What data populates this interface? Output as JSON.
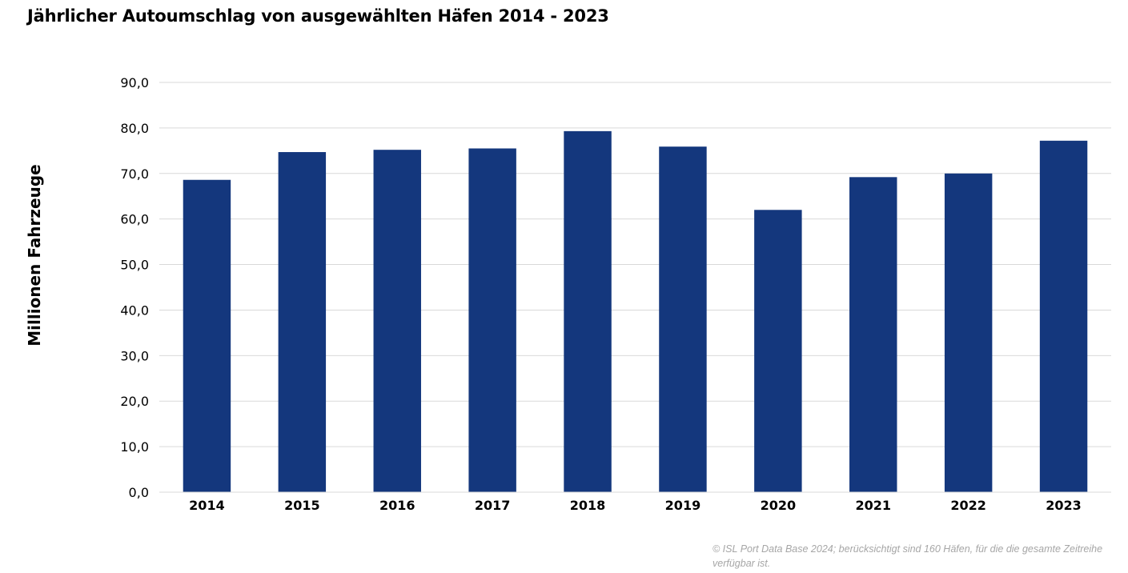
{
  "chart_data": {
    "type": "bar",
    "title": "Jährlicher Autoumschlag von ausgewählten Häfen 2014 - 2023",
    "xlabel": "",
    "ylabel": "Millionen Fahrzeuge",
    "categories": [
      "2014",
      "2015",
      "2016",
      "2017",
      "2018",
      "2019",
      "2020",
      "2021",
      "2022",
      "2023"
    ],
    "values": [
      68.6,
      74.7,
      75.2,
      75.5,
      79.3,
      75.9,
      62.0,
      69.2,
      70.0,
      77.2
    ],
    "ylim": [
      0,
      90
    ],
    "yticks": [
      "0,0",
      "10,0",
      "20,0",
      "30,0",
      "40,0",
      "50,0",
      "60,0",
      "70,0",
      "80,0",
      "90,0"
    ],
    "grid": true,
    "legend": "none",
    "colors": {
      "bar": "#14377d",
      "grid": "#d9d9d9",
      "axis": "#d9d9d9",
      "source": "#a6a6a6"
    }
  },
  "source_note": "© ISL Port Data Base 2024; berücksichtigt sind 160 Häfen, für die die gesamte Zeitreihe verfügbar ist."
}
